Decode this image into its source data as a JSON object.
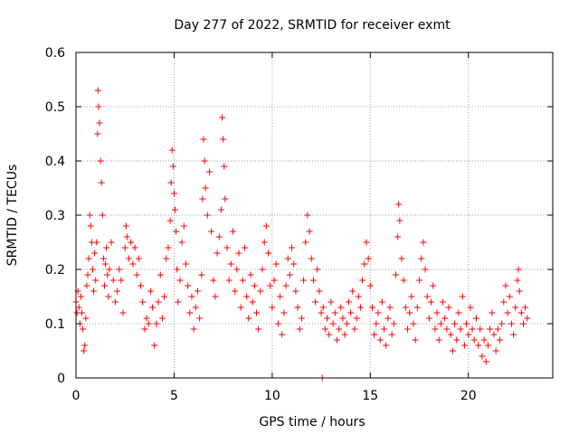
{
  "chart_data": {
    "type": "scatter",
    "title": "Day 277 of 2022, SRMTID for receiver exmt",
    "xlabel": "GPS time / hours",
    "ylabel": "SRMTID / TECUs",
    "xlim": [
      0,
      24.3
    ],
    "ylim": [
      0,
      0.6
    ],
    "xticks": [
      0,
      5,
      10,
      15,
      20
    ],
    "xtick_labels": [
      "0",
      "5",
      "10",
      "15",
      "20"
    ],
    "yticks": [
      0,
      0.1,
      0.2,
      0.3,
      0.4,
      0.5,
      0.6
    ],
    "ytick_labels": [
      "0",
      "0.1",
      "0.2",
      "0.3",
      "0.4",
      "0.5",
      "0.6"
    ],
    "grid": true,
    "marker": "plus",
    "color": "#ff0000",
    "series": [
      {
        "name": "SRMTID",
        "points": [
          [
            0.0,
            0.14
          ],
          [
            0.05,
            0.12
          ],
          [
            0.1,
            0.16
          ],
          [
            0.15,
            0.13
          ],
          [
            0.2,
            0.1
          ],
          [
            0.25,
            0.15
          ],
          [
            0.3,
            0.12
          ],
          [
            0.35,
            0.09
          ],
          [
            0.4,
            0.05
          ],
          [
            0.45,
            0.06
          ],
          [
            0.5,
            0.11
          ],
          [
            0.55,
            0.17
          ],
          [
            0.6,
            0.19
          ],
          [
            0.65,
            0.22
          ],
          [
            0.7,
            0.3
          ],
          [
            0.75,
            0.28
          ],
          [
            0.8,
            0.25
          ],
          [
            0.85,
            0.2
          ],
          [
            0.9,
            0.16
          ],
          [
            0.95,
            0.23
          ],
          [
            1.0,
            0.18
          ],
          [
            1.05,
            0.25
          ],
          [
            1.1,
            0.45
          ],
          [
            1.12,
            0.53
          ],
          [
            1.15,
            0.5
          ],
          [
            1.2,
            0.47
          ],
          [
            1.25,
            0.4
          ],
          [
            1.3,
            0.36
          ],
          [
            1.35,
            0.3
          ],
          [
            1.4,
            0.22
          ],
          [
            1.45,
            0.17
          ],
          [
            1.5,
            0.21
          ],
          [
            1.55,
            0.24
          ],
          [
            1.6,
            0.19
          ],
          [
            1.65,
            0.15
          ],
          [
            1.7,
            0.2
          ],
          [
            1.8,
            0.25
          ],
          [
            1.9,
            0.18
          ],
          [
            2.0,
            0.14
          ],
          [
            2.1,
            0.16
          ],
          [
            2.2,
            0.2
          ],
          [
            2.3,
            0.18
          ],
          [
            2.4,
            0.12
          ],
          [
            2.5,
            0.24
          ],
          [
            2.55,
            0.28
          ],
          [
            2.6,
            0.26
          ],
          [
            2.7,
            0.22
          ],
          [
            2.8,
            0.25
          ],
          [
            2.9,
            0.21
          ],
          [
            3.0,
            0.24
          ],
          [
            3.1,
            0.19
          ],
          [
            3.2,
            0.22
          ],
          [
            3.3,
            0.17
          ],
          [
            3.4,
            0.14
          ],
          [
            3.5,
            0.09
          ],
          [
            3.6,
            0.11
          ],
          [
            3.7,
            0.1
          ],
          [
            3.8,
            0.16
          ],
          [
            3.9,
            0.13
          ],
          [
            4.0,
            0.06
          ],
          [
            4.1,
            0.1
          ],
          [
            4.2,
            0.14
          ],
          [
            4.3,
            0.19
          ],
          [
            4.4,
            0.11
          ],
          [
            4.5,
            0.15
          ],
          [
            4.6,
            0.22
          ],
          [
            4.7,
            0.24
          ],
          [
            4.8,
            0.29
          ],
          [
            4.85,
            0.36
          ],
          [
            4.9,
            0.42
          ],
          [
            4.95,
            0.39
          ],
          [
            5.0,
            0.34
          ],
          [
            5.05,
            0.31
          ],
          [
            5.1,
            0.27
          ],
          [
            5.15,
            0.2
          ],
          [
            5.2,
            0.14
          ],
          [
            5.3,
            0.18
          ],
          [
            5.4,
            0.25
          ],
          [
            5.5,
            0.28
          ],
          [
            5.6,
            0.21
          ],
          [
            5.7,
            0.17
          ],
          [
            5.8,
            0.12
          ],
          [
            5.9,
            0.15
          ],
          [
            6.0,
            0.09
          ],
          [
            6.1,
            0.13
          ],
          [
            6.2,
            0.16
          ],
          [
            6.3,
            0.11
          ],
          [
            6.4,
            0.19
          ],
          [
            6.45,
            0.33
          ],
          [
            6.5,
            0.44
          ],
          [
            6.55,
            0.4
          ],
          [
            6.6,
            0.35
          ],
          [
            6.7,
            0.3
          ],
          [
            6.8,
            0.38
          ],
          [
            6.9,
            0.27
          ],
          [
            7.0,
            0.18
          ],
          [
            7.1,
            0.15
          ],
          [
            7.2,
            0.23
          ],
          [
            7.3,
            0.26
          ],
          [
            7.4,
            0.31
          ],
          [
            7.45,
            0.48
          ],
          [
            7.5,
            0.44
          ],
          [
            7.55,
            0.39
          ],
          [
            7.6,
            0.33
          ],
          [
            7.7,
            0.24
          ],
          [
            7.8,
            0.18
          ],
          [
            7.9,
            0.21
          ],
          [
            8.0,
            0.27
          ],
          [
            8.1,
            0.16
          ],
          [
            8.2,
            0.2
          ],
          [
            8.3,
            0.23
          ],
          [
            8.4,
            0.13
          ],
          [
            8.5,
            0.18
          ],
          [
            8.6,
            0.24
          ],
          [
            8.7,
            0.15
          ],
          [
            8.8,
            0.11
          ],
          [
            8.9,
            0.19
          ],
          [
            9.0,
            0.14
          ],
          [
            9.1,
            0.17
          ],
          [
            9.2,
            0.12
          ],
          [
            9.3,
            0.09
          ],
          [
            9.4,
            0.16
          ],
          [
            9.5,
            0.2
          ],
          [
            9.6,
            0.25
          ],
          [
            9.7,
            0.28
          ],
          [
            9.8,
            0.23
          ],
          [
            9.9,
            0.17
          ],
          [
            10.0,
            0.13
          ],
          [
            10.1,
            0.18
          ],
          [
            10.2,
            0.21
          ],
          [
            10.3,
            0.1
          ],
          [
            10.4,
            0.15
          ],
          [
            10.5,
            0.08
          ],
          [
            10.6,
            0.12
          ],
          [
            10.7,
            0.17
          ],
          [
            10.8,
            0.22
          ],
          [
            10.9,
            0.19
          ],
          [
            11.0,
            0.24
          ],
          [
            11.1,
            0.21
          ],
          [
            11.2,
            0.16
          ],
          [
            11.3,
            0.13
          ],
          [
            11.4,
            0.09
          ],
          [
            11.5,
            0.11
          ],
          [
            11.6,
            0.18
          ],
          [
            11.7,
            0.25
          ],
          [
            11.8,
            0.3
          ],
          [
            11.9,
            0.27
          ],
          [
            12.0,
            0.22
          ],
          [
            12.1,
            0.18
          ],
          [
            12.2,
            0.14
          ],
          [
            12.3,
            0.2
          ],
          [
            12.4,
            0.16
          ],
          [
            12.5,
            0.12
          ],
          [
            12.55,
            0.0
          ],
          [
            12.6,
            0.13
          ],
          [
            12.7,
            0.09
          ],
          [
            12.8,
            0.11
          ],
          [
            12.9,
            0.08
          ],
          [
            13.0,
            0.14
          ],
          [
            13.1,
            0.1
          ],
          [
            13.2,
            0.12
          ],
          [
            13.3,
            0.07
          ],
          [
            13.4,
            0.09
          ],
          [
            13.5,
            0.13
          ],
          [
            13.6,
            0.11
          ],
          [
            13.7,
            0.08
          ],
          [
            13.8,
            0.1
          ],
          [
            13.9,
            0.14
          ],
          [
            14.0,
            0.12
          ],
          [
            14.1,
            0.16
          ],
          [
            14.2,
            0.09
          ],
          [
            14.3,
            0.11
          ],
          [
            14.4,
            0.15
          ],
          [
            14.5,
            0.13
          ],
          [
            14.6,
            0.18
          ],
          [
            14.7,
            0.21
          ],
          [
            14.8,
            0.25
          ],
          [
            14.9,
            0.22
          ],
          [
            15.0,
            0.17
          ],
          [
            15.1,
            0.13
          ],
          [
            15.2,
            0.08
          ],
          [
            15.3,
            0.1
          ],
          [
            15.4,
            0.12
          ],
          [
            15.5,
            0.07
          ],
          [
            15.6,
            0.14
          ],
          [
            15.7,
            0.09
          ],
          [
            15.8,
            0.06
          ],
          [
            15.9,
            0.11
          ],
          [
            16.0,
            0.13
          ],
          [
            16.1,
            0.08
          ],
          [
            16.2,
            0.1
          ],
          [
            16.3,
            0.19
          ],
          [
            16.4,
            0.26
          ],
          [
            16.45,
            0.32
          ],
          [
            16.5,
            0.29
          ],
          [
            16.6,
            0.22
          ],
          [
            16.7,
            0.18
          ],
          [
            16.8,
            0.13
          ],
          [
            16.9,
            0.09
          ],
          [
            17.0,
            0.12
          ],
          [
            17.1,
            0.15
          ],
          [
            17.2,
            0.1
          ],
          [
            17.3,
            0.07
          ],
          [
            17.4,
            0.13
          ],
          [
            17.5,
            0.18
          ],
          [
            17.6,
            0.22
          ],
          [
            17.7,
            0.25
          ],
          [
            17.8,
            0.2
          ],
          [
            17.9,
            0.15
          ],
          [
            18.0,
            0.11
          ],
          [
            18.1,
            0.14
          ],
          [
            18.2,
            0.17
          ],
          [
            18.3,
            0.09
          ],
          [
            18.4,
            0.12
          ],
          [
            18.5,
            0.07
          ],
          [
            18.6,
            0.1
          ],
          [
            18.7,
            0.14
          ],
          [
            18.8,
            0.11
          ],
          [
            18.9,
            0.09
          ],
          [
            19.0,
            0.13
          ],
          [
            19.1,
            0.08
          ],
          [
            19.2,
            0.05
          ],
          [
            19.3,
            0.1
          ],
          [
            19.4,
            0.07
          ],
          [
            19.5,
            0.12
          ],
          [
            19.6,
            0.09
          ],
          [
            19.7,
            0.15
          ],
          [
            19.8,
            0.06
          ],
          [
            19.9,
            0.1
          ],
          [
            20.0,
            0.08
          ],
          [
            20.1,
            0.13
          ],
          [
            20.2,
            0.09
          ],
          [
            20.3,
            0.07
          ],
          [
            20.4,
            0.11
          ],
          [
            20.5,
            0.06
          ],
          [
            20.6,
            0.09
          ],
          [
            20.7,
            0.04
          ],
          [
            20.8,
            0.07
          ],
          [
            20.9,
            0.03
          ],
          [
            21.0,
            0.06
          ],
          [
            21.1,
            0.09
          ],
          [
            21.2,
            0.12
          ],
          [
            21.3,
            0.08
          ],
          [
            21.4,
            0.05
          ],
          [
            21.5,
            0.09
          ],
          [
            21.6,
            0.07
          ],
          [
            21.7,
            0.1
          ],
          [
            21.8,
            0.14
          ],
          [
            21.9,
            0.17
          ],
          [
            22.0,
            0.12
          ],
          [
            22.1,
            0.15
          ],
          [
            22.2,
            0.1
          ],
          [
            22.3,
            0.08
          ],
          [
            22.4,
            0.13
          ],
          [
            22.5,
            0.18
          ],
          [
            22.55,
            0.2
          ],
          [
            22.6,
            0.16
          ],
          [
            22.7,
            0.12
          ],
          [
            22.8,
            0.1
          ],
          [
            22.9,
            0.13
          ],
          [
            23.0,
            0.11
          ]
        ]
      }
    ]
  }
}
